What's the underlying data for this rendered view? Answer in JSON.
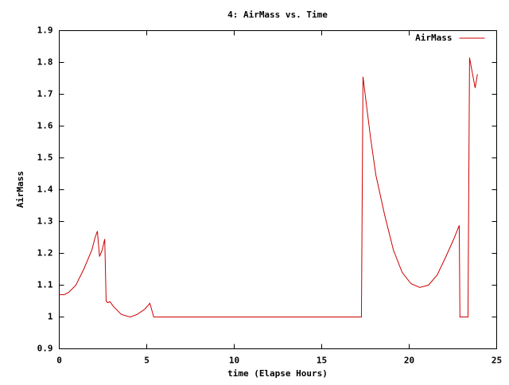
{
  "chart_data": {
    "type": "line",
    "title": "4: AirMass vs. Time",
    "x_label": "time (Elapse Hours)",
    "y_label": "AirMass",
    "x": [
      0,
      0.27,
      0.55,
      0.95,
      1.4,
      1.86,
      2.05,
      2.18,
      2.3,
      2.45,
      2.6,
      2.68,
      2.77,
      2.9,
      3.1,
      3.55,
      4.05,
      4.45,
      4.9,
      5.18,
      5.4,
      17.27,
      17.36,
      17.55,
      17.8,
      18.1,
      18.6,
      19.1,
      19.6,
      20.1,
      20.6,
      21.1,
      21.6,
      22.1,
      22.55,
      22.86,
      22.9,
      23.36,
      23.45,
      23.64,
      23.77,
      23.9
    ],
    "series": [
      {
        "name": "AirMass",
        "color": "#cc0000",
        "values": [
          1.07,
          1.07,
          1.078,
          1.1,
          1.15,
          1.21,
          1.25,
          1.27,
          1.19,
          1.21,
          1.245,
          1.05,
          1.045,
          1.048,
          1.033,
          1.008,
          1.0,
          1.008,
          1.025,
          1.043,
          1.0,
          1.0,
          1.755,
          1.67,
          1.56,
          1.445,
          1.32,
          1.21,
          1.14,
          1.105,
          1.093,
          1.1,
          1.132,
          1.19,
          1.245,
          1.288,
          1.0,
          1.0,
          1.815,
          1.758,
          1.72,
          1.763
        ]
      }
    ],
    "xlim": [
      0,
      25
    ],
    "xticks": [
      0,
      5,
      10,
      15,
      20,
      25
    ],
    "ylim": [
      0.9,
      1.9
    ],
    "yticks": [
      0.9,
      1,
      1.1,
      1.2,
      1.3,
      1.4,
      1.5,
      1.6,
      1.7,
      1.8,
      1.9
    ],
    "legend": "top-right"
  }
}
